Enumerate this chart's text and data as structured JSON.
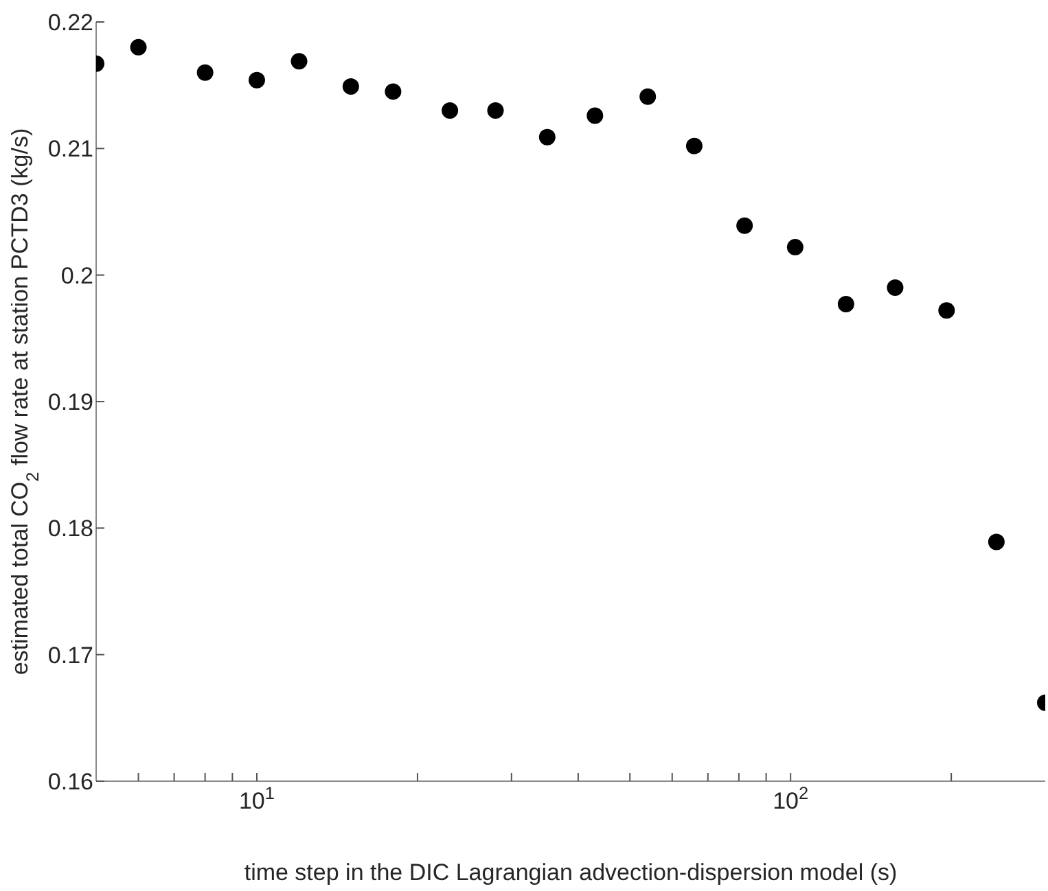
{
  "chart_data": {
    "type": "scatter",
    "xlabel": "time step in the DIC Lagrangian advection-dispersion model (s)",
    "ylabel": "estimated total CO$_{2}$ flow rate at station PCTD3 (kg/s)",
    "x": [
      5,
      6,
      8,
      10,
      12,
      15,
      18,
      23,
      28,
      35,
      43,
      54,
      66,
      82,
      102,
      127,
      157,
      196,
      243,
      300
    ],
    "series": [
      {
        "color": "#000000",
        "values": [
          0.2167,
          0.218,
          0.216,
          0.2154,
          0.2169,
          0.2149,
          0.2145,
          0.213,
          0.213,
          0.2109,
          0.2126,
          0.2141,
          0.2102,
          0.2039,
          0.2022,
          0.1977,
          0.199,
          0.1972,
          0.1789,
          0.1662
        ]
      }
    ],
    "log": "x",
    "xlim": [
      5,
      300
    ],
    "ylim": [
      0.16,
      0.22
    ],
    "xticks": [
      {
        "value": 5,
        "label": null
      },
      {
        "value": 6,
        "label": null
      },
      {
        "value": 7,
        "label": null
      },
      {
        "value": 8,
        "label": null
      },
      {
        "value": 9,
        "label": null
      },
      {
        "value": 10,
        "label": "10$^{1}$"
      },
      {
        "value": 20,
        "label": null
      },
      {
        "value": 30,
        "label": null
      },
      {
        "value": 40,
        "label": null
      },
      {
        "value": 50,
        "label": null
      },
      {
        "value": 60,
        "label": null
      },
      {
        "value": 70,
        "label": null
      },
      {
        "value": 80,
        "label": null
      },
      {
        "value": 90,
        "label": null
      },
      {
        "value": 100,
        "label": "10$^{2}$"
      },
      {
        "value": 200,
        "label": null
      }
    ],
    "yticks": [
      0.16,
      0.17,
      0.18,
      0.19,
      0.2,
      0.21,
      0.22
    ],
    "grid": false,
    "legend": false,
    "marker": "circle"
  }
}
